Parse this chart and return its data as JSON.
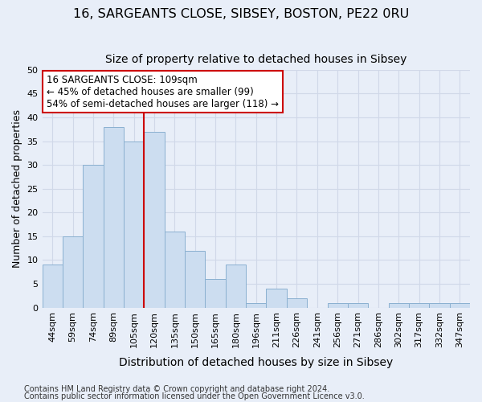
{
  "title1": "16, SARGEANTS CLOSE, SIBSEY, BOSTON, PE22 0RU",
  "title2": "Size of property relative to detached houses in Sibsey",
  "xlabel": "Distribution of detached houses by size in Sibsey",
  "ylabel": "Number of detached properties",
  "categories": [
    "44sqm",
    "59sqm",
    "74sqm",
    "89sqm",
    "105sqm",
    "120sqm",
    "135sqm",
    "150sqm",
    "165sqm",
    "180sqm",
    "196sqm",
    "211sqm",
    "226sqm",
    "241sqm",
    "256sqm",
    "271sqm",
    "286sqm",
    "302sqm",
    "317sqm",
    "332sqm",
    "347sqm"
  ],
  "values": [
    9,
    15,
    30,
    38,
    35,
    37,
    16,
    12,
    6,
    9,
    1,
    4,
    2,
    0,
    1,
    1,
    0,
    1,
    1,
    1,
    1
  ],
  "bar_color": "#ccddf0",
  "bar_edge_color": "#8ab0d0",
  "vline_x_index": 4.5,
  "vline_color": "#cc0000",
  "annotation_text": "16 SARGEANTS CLOSE: 109sqm\n← 45% of detached houses are smaller (99)\n54% of semi-detached houses are larger (118) →",
  "annotation_box_color": "#ffffff",
  "annotation_box_edge": "#cc0000",
  "ylim": [
    0,
    50
  ],
  "yticks": [
    0,
    5,
    10,
    15,
    20,
    25,
    30,
    35,
    40,
    45,
    50
  ],
  "grid_color": "#d0d8e8",
  "background_color": "#ffffff",
  "fig_background_color": "#e8eef8",
  "footer1": "Contains HM Land Registry data © Crown copyright and database right 2024.",
  "footer2": "Contains public sector information licensed under the Open Government Licence v3.0.",
  "title1_fontsize": 11.5,
  "title2_fontsize": 10,
  "xlabel_fontsize": 10,
  "ylabel_fontsize": 9,
  "tick_fontsize": 8,
  "footer_fontsize": 7
}
